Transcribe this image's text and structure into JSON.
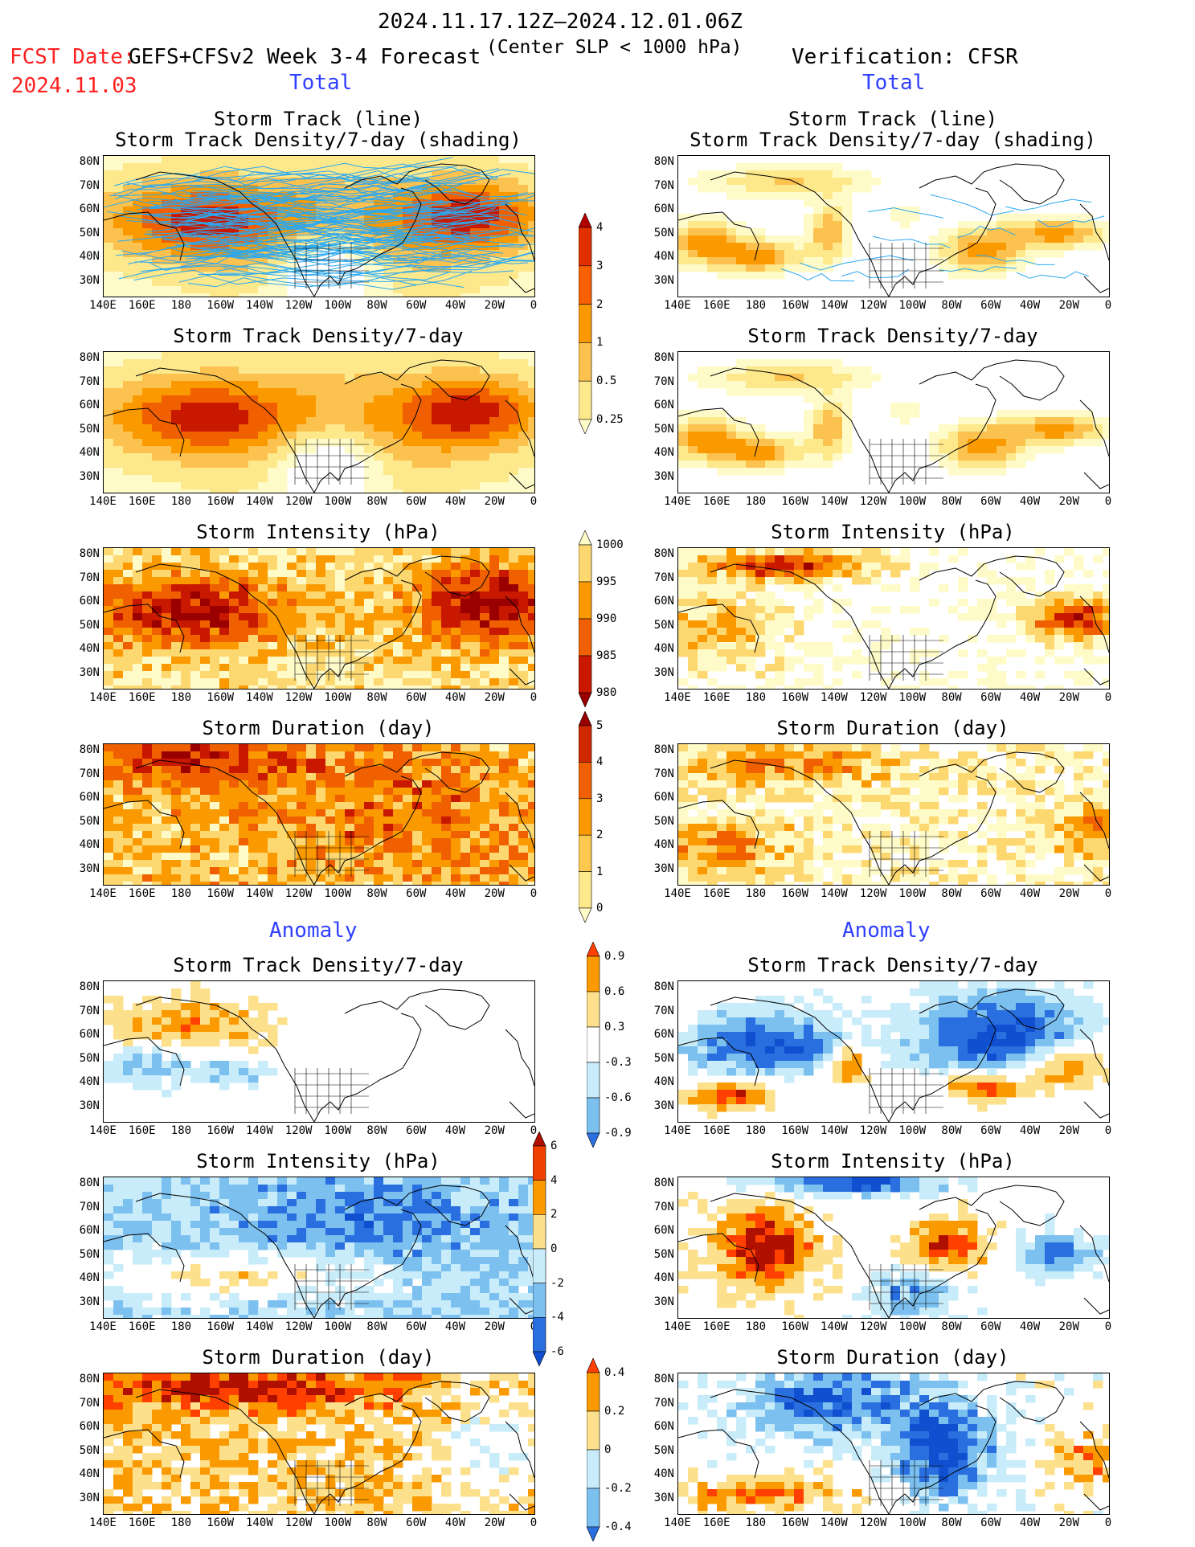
{
  "header": {
    "period": "2024.11.17.12Z–2024.12.01.06Z",
    "fcst_label": "FCST Date:",
    "fcst_date": "2024.11.03",
    "model": "GEFS+CFSv2 Week 3-4 Forecast",
    "criterion": "(Center SLP < 1000 hPa)",
    "verification": "Verification: CFSR"
  },
  "sections": {
    "total_left": "Total",
    "total_right": "Total",
    "anom_left": "Anomaly",
    "anom_right": "Anomaly"
  },
  "panels": {
    "r1_title": "Storm Track (line)\nStorm Track Density/7-day (shading)",
    "r2_title": "Storm Track Density/7-day",
    "r3_title": "Storm Intensity (hPa)",
    "r4_title": "Storm Duration (day)",
    "r5_title": "Storm Track Density/7-day",
    "r6_title": "Storm Intensity (hPa)",
    "r7_title": "Storm Duration (day)"
  },
  "axes": {
    "lat_labels": [
      "80N",
      "70N",
      "60N",
      "50N",
      "40N",
      "30N"
    ],
    "lon_labels": [
      "140E",
      "160E",
      "180",
      "160W",
      "140W",
      "120W",
      "100W",
      "80W",
      "60W",
      "40W",
      "20W",
      "0"
    ]
  },
  "colorbars": {
    "density": {
      "labels": [
        "4",
        "3",
        "2",
        "1",
        "0.5",
        "0.25"
      ],
      "colors": [
        "#b30000",
        "#e03000",
        "#f86000",
        "#fb9a00",
        "#fcc250",
        "#fde88c",
        "#fffbc8"
      ]
    },
    "intensity": {
      "labels": [
        "1000",
        "995",
        "990",
        "985",
        "980"
      ],
      "colors": [
        "#fffbc8",
        "#fdd870",
        "#fb9a00",
        "#f06000",
        "#c81800",
        "#9a0000"
      ]
    },
    "duration": {
      "labels": [
        "5",
        "4",
        "3",
        "2",
        "1",
        "0"
      ],
      "colors": [
        "#9a0000",
        "#d02800",
        "#f06000",
        "#fb9a00",
        "#fdc850",
        "#fde88c",
        "#fffbc8"
      ]
    },
    "density_anom": {
      "labels": [
        "0.9",
        "0.6",
        "0.3",
        "-0.3",
        "-0.6",
        "-0.9"
      ],
      "colors": [
        "#ff4000",
        "#fb9a00",
        "#fde08c",
        "#ffffff",
        "#c8ecfa",
        "#7cc0f0",
        "#2a6fe0"
      ]
    },
    "intensity_anom": {
      "labels": [
        "6",
        "4",
        "2",
        "0",
        "-2",
        "-4",
        "-6"
      ],
      "colors": [
        "#b01000",
        "#f04000",
        "#fb9a00",
        "#fde08c",
        "#c8ecfa",
        "#7cc0f0",
        "#2a6fe0",
        "#1050d0"
      ]
    },
    "duration_anom": {
      "labels": [
        "0.4",
        "0.2",
        "0",
        "-0.2",
        "-0.4"
      ],
      "colors": [
        "#ff4000",
        "#fb9a00",
        "#fde08c",
        "#c8ecfa",
        "#7cc0f0",
        "#2a6fe0"
      ]
    }
  },
  "palette": {
    "dens": [
      "#fffbc8",
      "#fde88c",
      "#fcc250",
      "#fb9a00",
      "#f06000",
      "#c81800"
    ],
    "inten": [
      "#fffbc8",
      "#fdd870",
      "#fb9a00",
      "#f06000",
      "#c81800",
      "#9a0000"
    ],
    "anom_pos": [
      "#fde08c",
      "#fb9a00",
      "#ff4000",
      "#b01000"
    ],
    "anom_neg": [
      "#c8ecfa",
      "#7cc0f0",
      "#2a6fe0",
      "#1050d0"
    ],
    "track_line": "#2aa8f0",
    "land_outline": "#000000"
  }
}
